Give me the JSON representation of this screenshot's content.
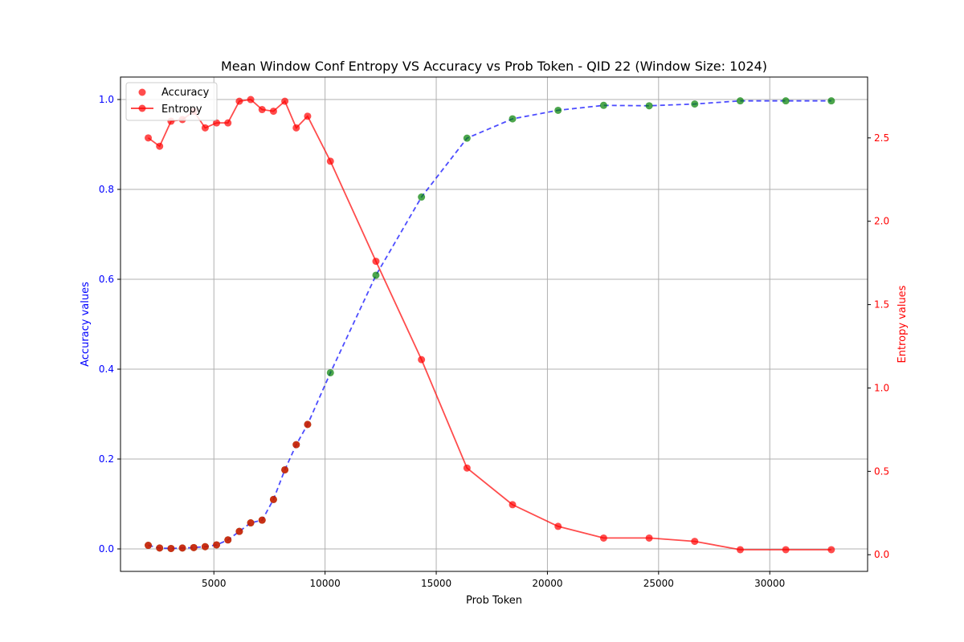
{
  "chart_data": {
    "type": "line",
    "title": "Mean Window Conf Entropy VS Accuracy vs Prob Token - QID 22 (Window Size: 1024)",
    "xlabel": "Prob Token",
    "ylabel_left": "Accuracy values",
    "ylabel_right": "Entropy values",
    "xlim": [
      800,
      34400
    ],
    "ylim_left": [
      -0.05,
      1.05
    ],
    "ylim_right": [
      -0.1,
      2.865
    ],
    "x_ticks": [
      5000,
      10000,
      15000,
      20000,
      25000,
      30000
    ],
    "y_ticks_left": [
      0.0,
      0.2,
      0.4,
      0.6,
      0.8,
      1.0
    ],
    "y_ticks_right": [
      0.0,
      0.5,
      1.0,
      1.5,
      2.0,
      2.5
    ],
    "grid": true,
    "legend_position": "upper-left",
    "series": [
      {
        "name": "Accuracy",
        "axis": "left",
        "style": "dashed-line-with-markers",
        "line_color": "#0000ff",
        "marker_color": "#008000",
        "x": [
          2048,
          2560,
          3072,
          3584,
          4096,
          4608,
          5120,
          5632,
          6144,
          6656,
          7168,
          7680,
          8192,
          8704,
          9216,
          10240,
          12288,
          14336,
          16384,
          18432,
          20480,
          22528,
          24576,
          26624,
          28672,
          30720,
          32768
        ],
        "values": [
          0.008,
          0.002,
          0.001,
          0.002,
          0.003,
          0.005,
          0.009,
          0.02,
          0.039,
          0.058,
          0.064,
          0.11,
          0.176,
          0.232,
          0.277,
          0.392,
          0.609,
          0.783,
          0.914,
          0.957,
          0.976,
          0.987,
          0.986,
          0.99,
          0.997,
          0.997,
          0.997
        ]
      },
      {
        "name": "Entropy",
        "axis": "right",
        "style": "solid-line-with-markers",
        "line_color": "#ff0000",
        "marker_color": "#ff0000",
        "x": [
          2048,
          2560,
          3072,
          3584,
          4096,
          4608,
          5120,
          5632,
          6144,
          6656,
          7168,
          7680,
          8192,
          8704,
          9216,
          10240,
          12288,
          14336,
          16384,
          18432,
          20480,
          22528,
          24576,
          26624,
          28672,
          30720,
          32768
        ],
        "values": [
          2.5,
          2.45,
          2.6,
          2.61,
          2.66,
          2.56,
          2.59,
          2.59,
          2.72,
          2.73,
          2.67,
          2.66,
          2.72,
          2.56,
          2.63,
          2.36,
          1.76,
          1.17,
          0.52,
          0.3,
          0.17,
          0.1,
          0.1,
          0.08,
          0.03,
          0.03,
          0.03
        ]
      }
    ]
  },
  "legend": {
    "items": [
      {
        "label": "Accuracy",
        "kind": "scatter",
        "color": "#ff0000"
      },
      {
        "label": "Entropy",
        "kind": "line-marker",
        "color": "#ff0000"
      }
    ]
  },
  "colors": {
    "left_axis": "#0000ff",
    "right_axis": "#ff0000",
    "grid": "#b0b0b0"
  }
}
